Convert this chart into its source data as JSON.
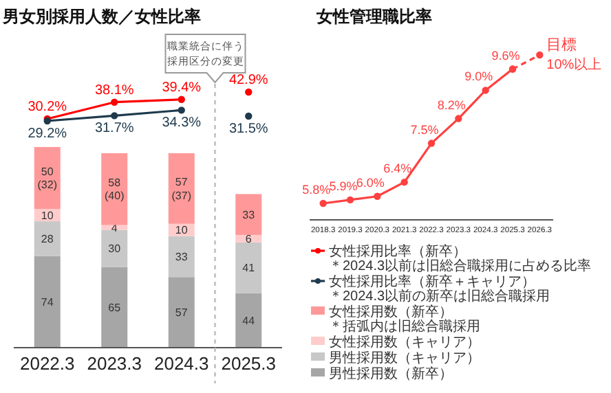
{
  "chart_data": [
    {
      "type": "bar",
      "stacked": true,
      "title": "男女別採用人数／女性比率",
      "categories": [
        "2022.3",
        "2023.3",
        "2024.3",
        "2025.3"
      ],
      "tick_labels": "x",
      "ylim": [
        0,
        210
      ],
      "legend": "bottom right",
      "marker": "circle",
      "annotations": [
        "職業統合に伴う採用区分の変更"
      ],
      "series": [
        {
          "name": "男性採用数（新卒）",
          "color": "#a6a6a6",
          "values": [
            74,
            65,
            57,
            44
          ],
          "value_labels": [
            "74",
            "65",
            "57",
            "44"
          ]
        },
        {
          "name": "男性採用数（キャリア）",
          "color": "#c8c8c8",
          "values": [
            28,
            30,
            33,
            41
          ],
          "value_labels": [
            "28",
            "30",
            "33",
            "41"
          ]
        },
        {
          "name": "女性採用数（キャリア）",
          "color": "#ffcccc",
          "values": [
            10,
            4,
            10,
            6
          ],
          "value_labels": [
            "10",
            "4",
            "10",
            "6"
          ]
        },
        {
          "name": "女性採用数（新卒）＊括弧内は旧総合職採用",
          "color": "#ff9999",
          "values": [
            50,
            58,
            57,
            33
          ],
          "value_labels": [
            "50 (32)",
            "58 (40)",
            "57 (37)",
            "33"
          ]
        },
        {
          "type": "line",
          "axis": "y2",
          "name": "女性採用比率（新卒）＊2024.3以前は旧総合職採用に占める比率",
          "color": "#ff0000",
          "values": [
            30.2,
            38.1,
            39.4,
            null
          ],
          "value_labels": [
            "30.2%",
            "38.1%",
            "39.4%",
            null
          ]
        },
        {
          "type": "scatter",
          "axis": "y2",
          "color": "#ff0000",
          "values": [
            null,
            null,
            null,
            42.9
          ],
          "value_labels": [
            null,
            null,
            null,
            "42.9%"
          ]
        },
        {
          "type": "line",
          "axis": "y2",
          "name": "女性採用比率（新卒＋キャリア）＊2024.3以前の新卒は旧総合職採用",
          "color": "#1f3a4d",
          "values": [
            29.2,
            31.7,
            34.3,
            null
          ],
          "value_labels": [
            "29.2%",
            "31.7%",
            "34.3%",
            null
          ]
        },
        {
          "type": "scatter",
          "axis": "y2",
          "color": "#1f3a4d",
          "values": [
            null,
            null,
            null,
            31.5
          ],
          "value_labels": [
            null,
            null,
            null,
            "31.5%"
          ]
        }
      ]
    },
    {
      "type": "line",
      "title": "女性管理職比率",
      "categories": [
        "2018.3",
        "2019.3",
        "2020.3",
        "2021.3",
        "2022.3",
        "2023.3",
        "2024.3",
        "2025.3",
        "2026.3"
      ],
      "tick_labels": "x",
      "marker": "circle",
      "annotations": [
        {
          "text": "目標 10%以上",
          "x": "2026.3",
          "y": 10
        }
      ],
      "series": [
        {
          "color": "#ff4040",
          "values": [
            5.8,
            5.9,
            6.0,
            6.4,
            7.5,
            8.2,
            9.0,
            9.6,
            null
          ],
          "value_labels": [
            "5.8%",
            "5.9%",
            "6.0%",
            "6.4%",
            "7.5%",
            "8.2%",
            "9.0%",
            "9.6%",
            null
          ]
        },
        {
          "color": "#ff4040",
          "line_style": "dashed",
          "values": [
            null,
            null,
            null,
            null,
            null,
            null,
            null,
            9.6,
            10
          ]
        }
      ]
    }
  ]
}
